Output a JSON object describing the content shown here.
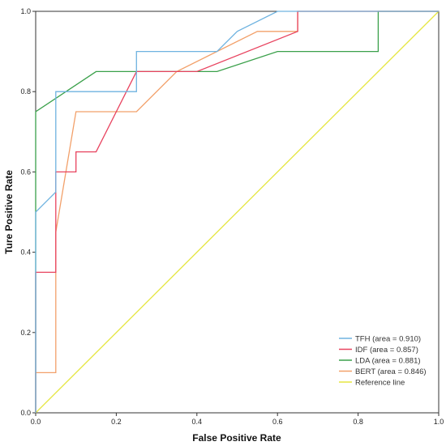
{
  "chart_data": {
    "type": "line",
    "title": "",
    "xlabel": "False Positive Rate",
    "ylabel": "Ture Positive Rate",
    "xlim": [
      0.0,
      1.0
    ],
    "ylim": [
      0.0,
      1.0
    ],
    "xticks": [
      0.0,
      0.2,
      0.4,
      0.6,
      0.8,
      1.0
    ],
    "yticks": [
      0.0,
      0.2,
      0.4,
      0.6,
      0.8,
      1.0
    ],
    "xtick_labels": [
      "0.0",
      "0.2",
      "0.4",
      "0.6",
      "0.8",
      "1.0"
    ],
    "ytick_labels": [
      "0.0",
      "0.2",
      "0.4",
      "0.6",
      "0.8",
      "1.0"
    ],
    "grid": false,
    "legend_position": "bottom-right",
    "series": [
      {
        "name": "TFH (area = 0.910)",
        "color": "#6fb3e0",
        "points": [
          [
            0,
            0
          ],
          [
            0,
            0.5
          ],
          [
            0.05,
            0.55
          ],
          [
            0.05,
            0.8
          ],
          [
            0.25,
            0.8
          ],
          [
            0.25,
            0.9
          ],
          [
            0.45,
            0.9
          ],
          [
            0.5,
            0.95
          ],
          [
            0.6,
            1.0
          ],
          [
            1.0,
            1.0
          ]
        ]
      },
      {
        "name": "IDF (area = 0.857)",
        "color": "#e8435f",
        "points": [
          [
            0,
            0
          ],
          [
            0,
            0.35
          ],
          [
            0.05,
            0.35
          ],
          [
            0.05,
            0.6
          ],
          [
            0.1,
            0.6
          ],
          [
            0.1,
            0.65
          ],
          [
            0.15,
            0.65
          ],
          [
            0.25,
            0.85
          ],
          [
            0.4,
            0.85
          ],
          [
            0.65,
            0.95
          ],
          [
            0.65,
            1.0
          ],
          [
            1.0,
            1.0
          ]
        ]
      },
      {
        "name": "LDA (area = 0.881)",
        "color": "#3aa04a",
        "points": [
          [
            0,
            0
          ],
          [
            0,
            0.75
          ],
          [
            0.15,
            0.85
          ],
          [
            0.45,
            0.85
          ],
          [
            0.6,
            0.9
          ],
          [
            0.85,
            0.9
          ],
          [
            0.85,
            1.0
          ],
          [
            1.0,
            1.0
          ]
        ]
      },
      {
        "name": "BERT (area = 0.846)",
        "color": "#f2a06a",
        "points": [
          [
            0,
            0
          ],
          [
            0,
            0.1
          ],
          [
            0.05,
            0.1
          ],
          [
            0.05,
            0.45
          ],
          [
            0.1,
            0.75
          ],
          [
            0.25,
            0.75
          ],
          [
            0.35,
            0.85
          ],
          [
            0.55,
            0.95
          ],
          [
            0.65,
            0.95
          ],
          [
            0.65,
            1.0
          ],
          [
            1.0,
            1.0
          ]
        ]
      },
      {
        "name": "Reference line",
        "color": "#e5e640",
        "points": [
          [
            0,
            0
          ],
          [
            1,
            1
          ]
        ]
      }
    ]
  }
}
